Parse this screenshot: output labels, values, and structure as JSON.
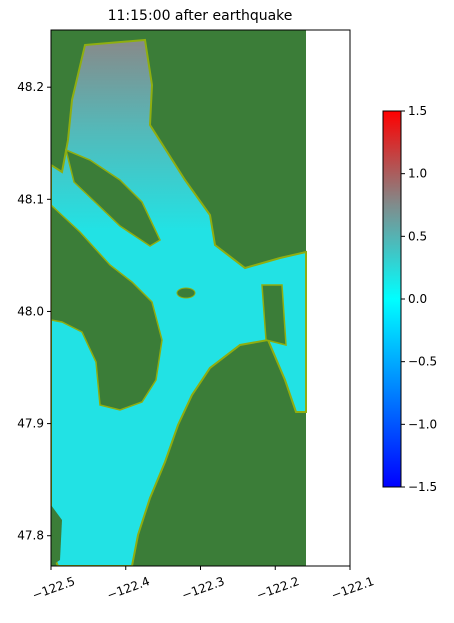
{
  "chart_data": {
    "type": "heatmap",
    "title": "11:15:00 after earthquake",
    "xlim": [
      -122.5,
      -122.1
    ],
    "xticks": [
      {
        "value": -122.5,
        "label": "−122.5"
      },
      {
        "value": -122.4,
        "label": "−122.4"
      },
      {
        "value": -122.3,
        "label": "−122.3"
      },
      {
        "value": -122.2,
        "label": "−122.2"
      },
      {
        "value": -122.1,
        "label": "−122.1"
      }
    ],
    "ylim": [
      47.773,
      48.251
    ],
    "yticks": [
      47.8,
      47.9,
      {
        "value": 48.0,
        "label": "48.0"
      },
      48.1,
      48.2
    ],
    "colorbar": {
      "lim": [
        -1.5,
        1.5
      ],
      "ticks": [
        {
          "value": -1.5,
          "label": "−1.5"
        },
        {
          "value": -1.0,
          "label": "−1.0"
        },
        {
          "value": -0.5,
          "label": "−0.5"
        },
        {
          "value": 0.0,
          "label": "0.0"
        },
        0.5,
        {
          "value": 1.0,
          "label": "1.0"
        },
        1.5
      ]
    }
  }
}
